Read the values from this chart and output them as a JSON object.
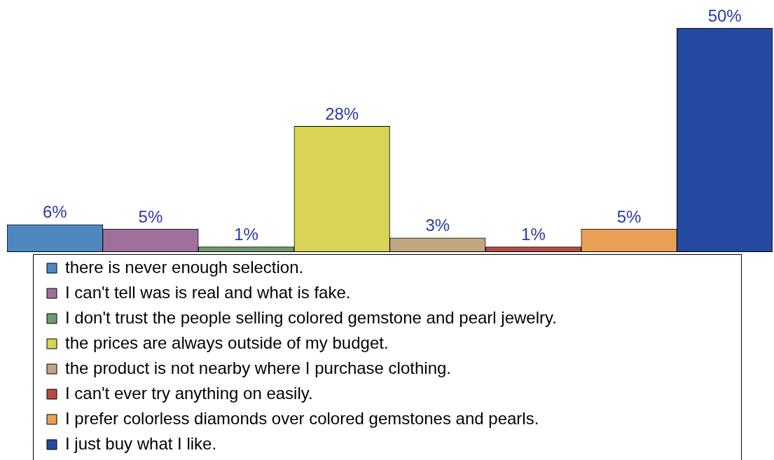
{
  "chart_data": {
    "type": "bar",
    "categories": [
      null
    ],
    "series": [
      {
        "name": "there is never enough selection.",
        "color": "#4f87c0",
        "values": [
          6
        ],
        "value_labels": [
          "6%"
        ]
      },
      {
        "name": "I can't tell was is real and what is fake.",
        "color": "#a0709c",
        "values": [
          5
        ],
        "value_labels": [
          "5%"
        ]
      },
      {
        "name": "I don't trust the people selling colored gemstone and pearl jewelry.",
        "color": "#6e9b73",
        "values": [
          1
        ],
        "value_labels": [
          "1%"
        ]
      },
      {
        "name": "the prices are always outside of my budget.",
        "color": "#d8d455",
        "values": [
          28
        ],
        "value_labels": [
          "28%"
        ]
      },
      {
        "name": "the product is not nearby where I purchase clothing.",
        "color": "#c0a781",
        "values": [
          3
        ],
        "value_labels": [
          "3%"
        ]
      },
      {
        "name": "I can't ever try anything on easily.",
        "color": "#b84a44",
        "values": [
          1
        ],
        "value_labels": [
          "1%"
        ]
      },
      {
        "name": "I prefer colorless diamonds over colored gemstones and pearls.",
        "color": "#e8a055",
        "values": [
          5
        ],
        "value_labels": [
          "5%"
        ]
      },
      {
        "name": "I just buy what I like.",
        "color": "#2548a0",
        "values": [
          50
        ],
        "value_labels": [
          "50%"
        ]
      }
    ],
    "legend": "bottom"
  }
}
